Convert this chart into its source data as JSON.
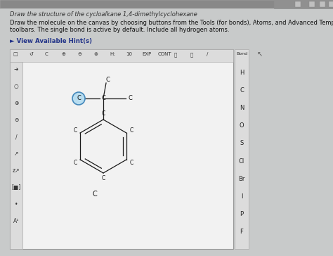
{
  "title_text": "Draw the structure of the cycloalkane 1,4-dimethylcyclohexane",
  "instruction_line1": "Draw the molecule on the canvas by choosing buttons from the Tools (for bonds), Atoms, and Advanced Template",
  "instruction_line2": "toolbars. The single bond is active by default. Include all hydrogen atoms.",
  "hint_text": "► View Available Hint(s)",
  "page_bg": "#c8caca",
  "text_area_bg": "#d8d8d8",
  "canvas_bg": "#f2f2f2",
  "canvas_border": "#aaaaaa",
  "toolbar_bg": "#e0e0e0",
  "right_sidebar_elements": [
    "Bond",
    "H",
    "C",
    "N",
    "O",
    "S",
    "Cl",
    "Br",
    "I",
    "P",
    "F"
  ],
  "bond_color": "#1a1a1a",
  "highlight_fill": "#b8ddf0",
  "highlight_edge": "#4488bb",
  "window_bar_bg": "#404040",
  "window_bar_right_bg": "#c0c0c0"
}
